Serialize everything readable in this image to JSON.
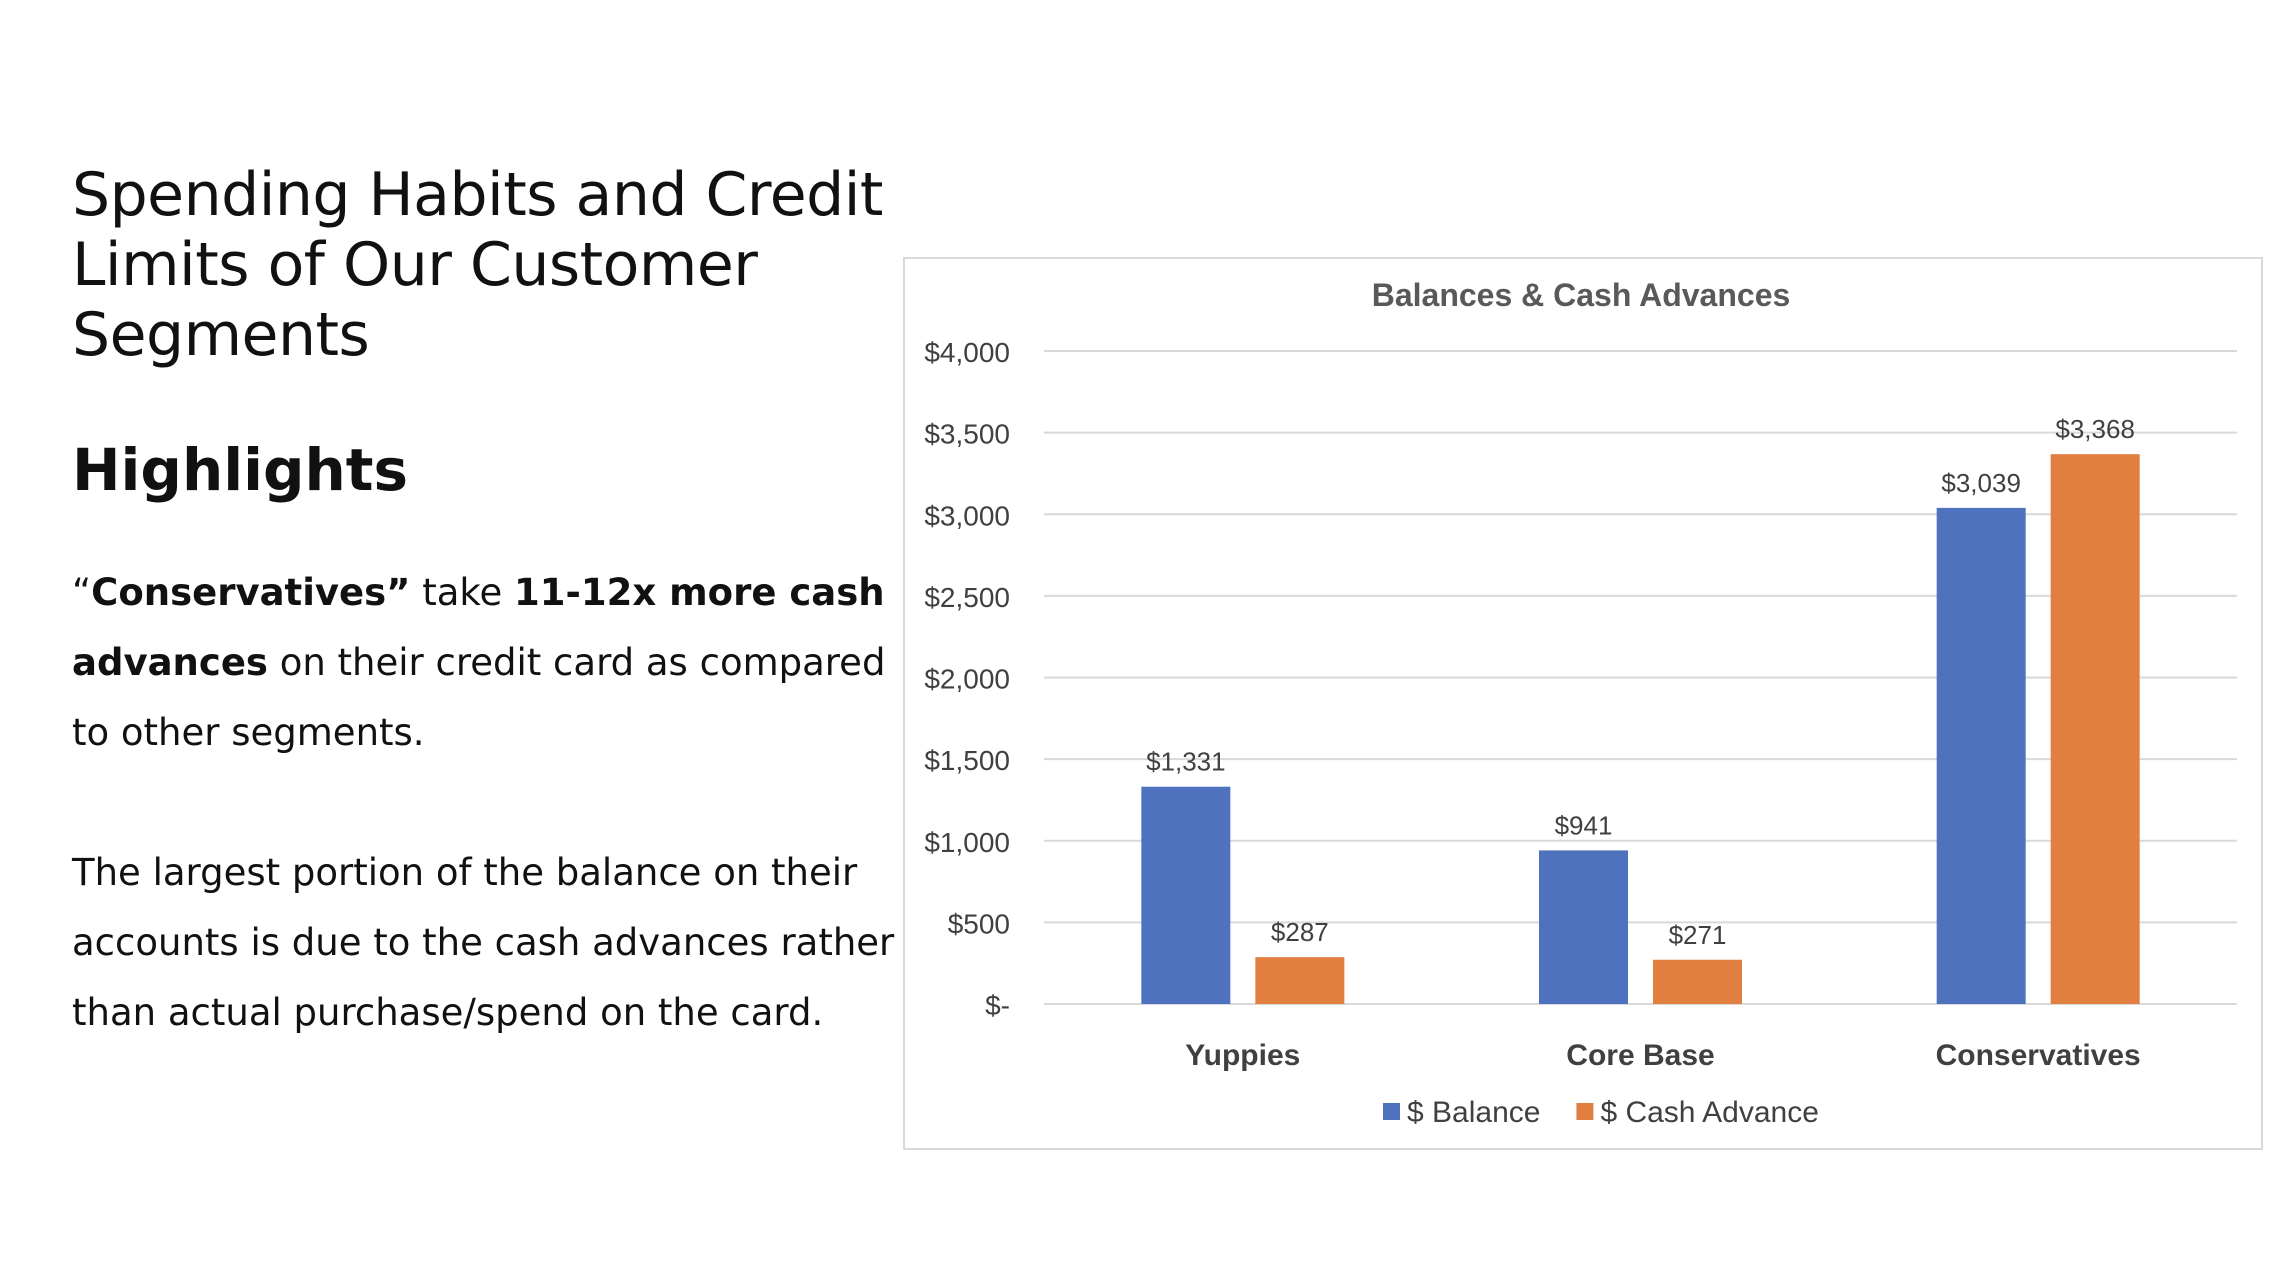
{
  "slide": {
    "title_lines": [
      "Spending Habits and Credit",
      "Limits of Our Customer",
      "Segments"
    ],
    "highlights_heading": "Highlights",
    "para1": {
      "open_quote": "“",
      "bold1": "Conservatives”",
      "text1": " take ",
      "bold2": "11-12x more cash advances",
      "text2": " on their credit card as compared to other segments."
    },
    "para2": "The largest portion of the balance on their accounts is due to the cash advances rather than actual purchase/spend on the card."
  },
  "chart_data": {
    "type": "bar",
    "title": "Balances & Cash  Advances",
    "categories": [
      "Yuppies",
      "Core Base",
      "Conservatives"
    ],
    "series": [
      {
        "name": "$ Balance",
        "color": "#4f72be",
        "values": [
          1331,
          941,
          3039
        ],
        "labels": [
          "$1,331",
          "$941",
          "$3,039"
        ]
      },
      {
        "name": "$ Cash Advance",
        "color": "#e07f40",
        "values": [
          287,
          271,
          3368
        ],
        "labels": [
          "$287",
          "$271",
          "$3,368"
        ]
      }
    ],
    "ylim": [
      0,
      4000
    ],
    "yticks": [
      0,
      500,
      1000,
      1500,
      2000,
      2500,
      3000,
      3500,
      4000
    ],
    "ytick_labels": [
      "$-",
      "$500",
      "$1,000",
      "$1,500",
      "$2,000",
      "$2,500",
      "$3,000",
      "$3,500",
      "$4,000"
    ],
    "grid": true,
    "legend": "bottom",
    "xlabel": "",
    "ylabel": ""
  }
}
